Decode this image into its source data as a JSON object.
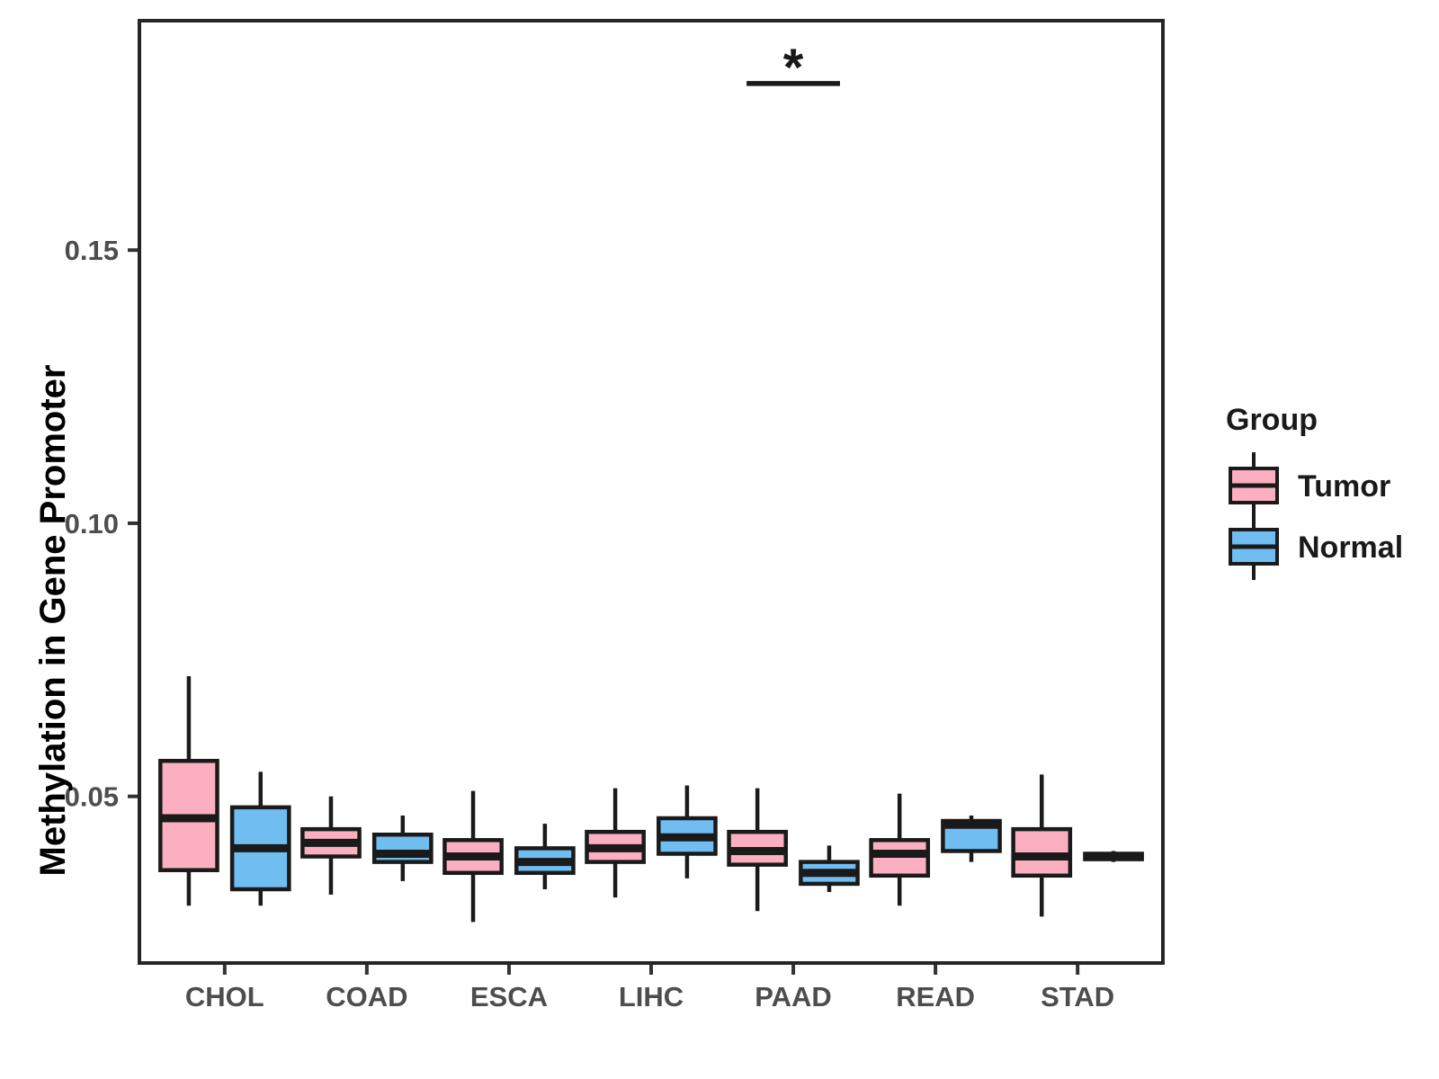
{
  "style": {
    "background": "#FFFFFF",
    "panel_border_color": "#262626",
    "box_stroke_color": "#1A1A1A",
    "axis_tick_color": "#333333",
    "tick_label_color": "#4D4D4D",
    "axis_title_color": "#000000",
    "legend_text_color": "#1A1A1A",
    "significance_color": "#1A1A1A",
    "tumor_fill": "#FCAFC0",
    "normal_fill": "#70BDF2"
  },
  "chart_data": {
    "type": "boxplot",
    "orientation": "vertical",
    "title": "",
    "xlabel": "",
    "ylabel": "Methylation in Gene Promoter",
    "categories": [
      "CHOL",
      "COAD",
      "ESCA",
      "LIHC",
      "PAAD",
      "READ",
      "STAD"
    ],
    "ylim": [
      0.0195,
      0.192
    ],
    "grid": false,
    "y_ticks": [
      {
        "value": 0.05,
        "label": "0.05"
      },
      {
        "value": 0.1,
        "label": "0.10"
      },
      {
        "value": 0.15,
        "label": "0.15"
      }
    ],
    "legend": {
      "title": "Group",
      "position": "right"
    },
    "series": [
      {
        "name": "Tumor",
        "fill": "#FCAFC0",
        "boxes": [
          {
            "category": "CHOL",
            "low": 0.03,
            "q1": 0.0365,
            "median": 0.046,
            "q3": 0.0565,
            "high": 0.072
          },
          {
            "category": "COAD",
            "low": 0.032,
            "q1": 0.039,
            "median": 0.0415,
            "q3": 0.044,
            "high": 0.05
          },
          {
            "category": "ESCA",
            "low": 0.027,
            "q1": 0.036,
            "median": 0.039,
            "q3": 0.042,
            "high": 0.051
          },
          {
            "category": "LIHC",
            "low": 0.0315,
            "q1": 0.038,
            "median": 0.0405,
            "q3": 0.0435,
            "high": 0.0515
          },
          {
            "category": "PAAD",
            "low": 0.029,
            "q1": 0.0375,
            "median": 0.04,
            "q3": 0.0435,
            "high": 0.0515
          },
          {
            "category": "READ",
            "low": 0.03,
            "q1": 0.0355,
            "median": 0.0395,
            "q3": 0.042,
            "high": 0.0505
          },
          {
            "category": "STAD",
            "low": 0.028,
            "q1": 0.0355,
            "median": 0.039,
            "q3": 0.044,
            "high": 0.054
          }
        ]
      },
      {
        "name": "Normal",
        "fill": "#70BDF2",
        "boxes": [
          {
            "category": "CHOL",
            "low": 0.03,
            "q1": 0.033,
            "median": 0.0405,
            "q3": 0.048,
            "high": 0.0545
          },
          {
            "category": "COAD",
            "low": 0.0345,
            "q1": 0.038,
            "median": 0.0395,
            "q3": 0.043,
            "high": 0.0465
          },
          {
            "category": "ESCA",
            "low": 0.033,
            "q1": 0.036,
            "median": 0.038,
            "q3": 0.0405,
            "high": 0.045
          },
          {
            "category": "LIHC",
            "low": 0.035,
            "q1": 0.0395,
            "median": 0.0425,
            "q3": 0.046,
            "high": 0.052
          },
          {
            "category": "PAAD",
            "low": 0.0325,
            "q1": 0.034,
            "median": 0.036,
            "q3": 0.038,
            "high": 0.041
          },
          {
            "category": "READ",
            "low": 0.038,
            "q1": 0.04,
            "median": 0.0448,
            "q3": 0.0455,
            "high": 0.0465
          },
          {
            "category": "STAD",
            "low": 0.038,
            "q1": 0.0385,
            "median": 0.039,
            "q3": 0.0395,
            "high": 0.04
          }
        ]
      }
    ],
    "annotations": [
      {
        "type": "significance-bracket",
        "label": "*",
        "category": "PAAD",
        "between": [
          "Tumor",
          "Normal"
        ],
        "line_y_value": 0.1805
      }
    ]
  }
}
